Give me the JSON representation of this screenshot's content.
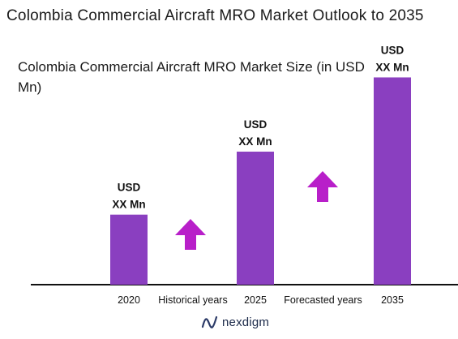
{
  "title": "Colombia Commercial Aircraft MRO Market Outlook to 2035",
  "chart_data": {
    "type": "bar",
    "title": "Colombia Commercial Aircraft MRO Market Size (in USD Mn)",
    "categories": [
      "2020",
      "2025",
      "2035"
    ],
    "values": [
      100,
      190,
      296
    ],
    "value_labels": [
      [
        "USD",
        "XX Mn"
      ],
      [
        "USD",
        "XX Mn"
      ],
      [
        "USD",
        "XX Mn"
      ]
    ],
    "period_labels": [
      "Historical years",
      "Forecasted years"
    ],
    "bar_color": "#8a3fc0",
    "arrow_color": "#b81fc9",
    "grid": false,
    "ylim": [
      0,
      300
    ]
  },
  "logo": {
    "text": "nexdigm",
    "icon": "nexdigm-logo-icon"
  }
}
